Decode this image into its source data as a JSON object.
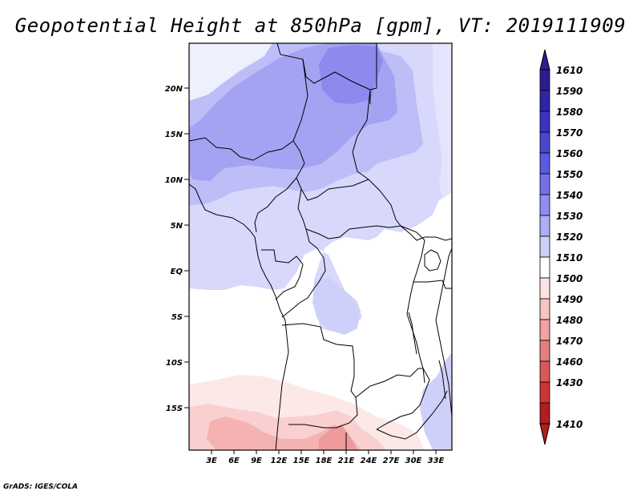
{
  "title": "Geopotential Height at 850hPa [gpm], VT: 2019111909",
  "credit": "GrADS: IGES/COLA",
  "map": {
    "lat_ticks": [
      "20N",
      "15N",
      "10N",
      "5N",
      "EQ",
      "5S",
      "10S",
      "15S"
    ],
    "lon_ticks": [
      "3E",
      "6E",
      "9E",
      "12E",
      "15E",
      "18E",
      "21E",
      "24E",
      "27E",
      "30E",
      "33E"
    ]
  },
  "colorbar": {
    "labels": [
      "1610",
      "1590",
      "1580",
      "1570",
      "1560",
      "1550",
      "1540",
      "1530",
      "1520",
      "1510",
      "1500",
      "1490",
      "1480",
      "1470",
      "1460",
      "1430",
      "1410"
    ],
    "colors": [
      "#2b1d8f",
      "#2f24a8",
      "#3a33c1",
      "#4a45d3",
      "#5c5ae0",
      "#7370ea",
      "#8f8df2",
      "#aeaef6",
      "#cfd0fa",
      "#ffffff",
      "#fde4e4",
      "#f8c4c4",
      "#f1a2a2",
      "#e67e7e",
      "#db5858",
      "#cb3636",
      "#b21d1d"
    ]
  }
}
